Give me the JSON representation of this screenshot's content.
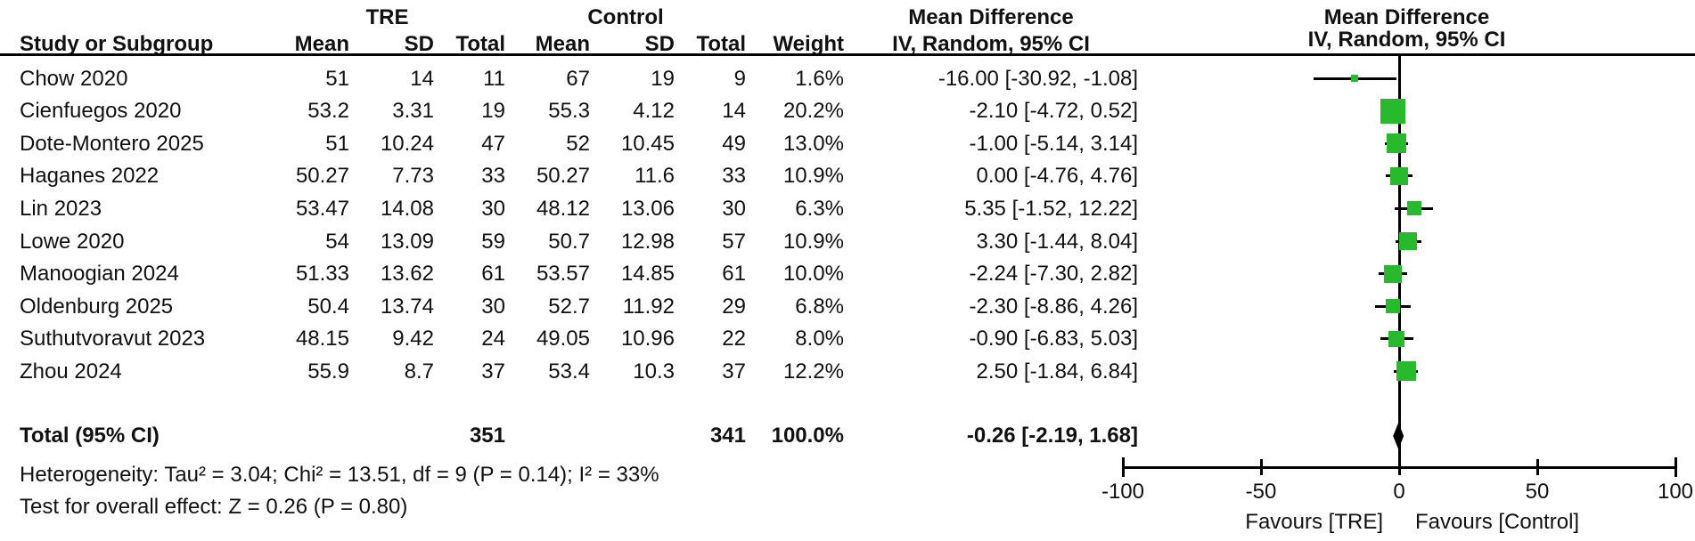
{
  "header": {
    "group1": "TRE",
    "group2": "Control",
    "md_label": "Mean Difference",
    "method_label": "IV, Random, 95% CI",
    "cols": [
      "Study or Subgroup",
      "Mean",
      "SD",
      "Total",
      "Mean",
      "SD",
      "Total",
      "Weight",
      "IV, Random, 95% CI"
    ]
  },
  "chart_data": {
    "type": "forest",
    "title": "",
    "effect_measure": "Mean Difference",
    "method": "IV, Random, 95% CI",
    "groups": [
      "TRE",
      "Control"
    ],
    "studies": [
      {
        "study": "Chow 2020",
        "tre_mean": "51",
        "tre_sd": "14",
        "tre_total": "11",
        "ctl_mean": "67",
        "ctl_sd": "19",
        "ctl_total": "9",
        "weight": "1.6%",
        "ci_text": "-16.00 [-30.92, -1.08]",
        "md": -16.0,
        "lo": -30.92,
        "hi": -1.08,
        "weight_pct": 1.6
      },
      {
        "study": "Cienfuegos 2020",
        "tre_mean": "53.2",
        "tre_sd": "3.31",
        "tre_total": "19",
        "ctl_mean": "55.3",
        "ctl_sd": "4.12",
        "ctl_total": "14",
        "weight": "20.2%",
        "ci_text": "-2.10 [-4.72, 0.52]",
        "md": -2.1,
        "lo": -4.72,
        "hi": 0.52,
        "weight_pct": 20.2
      },
      {
        "study": "Dote-Montero 2025",
        "tre_mean": "51",
        "tre_sd": "10.24",
        "tre_total": "47",
        "ctl_mean": "52",
        "ctl_sd": "10.45",
        "ctl_total": "49",
        "weight": "13.0%",
        "ci_text": "-1.00 [-5.14, 3.14]",
        "md": -1.0,
        "lo": -5.14,
        "hi": 3.14,
        "weight_pct": 13.0
      },
      {
        "study": "Haganes 2022",
        "tre_mean": "50.27",
        "tre_sd": "7.73",
        "tre_total": "33",
        "ctl_mean": "50.27",
        "ctl_sd": "11.6",
        "ctl_total": "33",
        "weight": "10.9%",
        "ci_text": "0.00 [-4.76, 4.76]",
        "md": 0.0,
        "lo": -4.76,
        "hi": 4.76,
        "weight_pct": 10.9
      },
      {
        "study": "Lin 2023",
        "tre_mean": "53.47",
        "tre_sd": "14.08",
        "tre_total": "30",
        "ctl_mean": "48.12",
        "ctl_sd": "13.06",
        "ctl_total": "30",
        "weight": "6.3%",
        "ci_text": "5.35 [-1.52, 12.22]",
        "md": 5.35,
        "lo": -1.52,
        "hi": 12.22,
        "weight_pct": 6.3
      },
      {
        "study": "Lowe 2020",
        "tre_mean": "54",
        "tre_sd": "13.09",
        "tre_total": "59",
        "ctl_mean": "50.7",
        "ctl_sd": "12.98",
        "ctl_total": "57",
        "weight": "10.9%",
        "ci_text": "3.30 [-1.44, 8.04]",
        "md": 3.3,
        "lo": -1.44,
        "hi": 8.04,
        "weight_pct": 10.9
      },
      {
        "study": "Manoogian 2024",
        "tre_mean": "51.33",
        "tre_sd": "13.62",
        "tre_total": "61",
        "ctl_mean": "53.57",
        "ctl_sd": "14.85",
        "ctl_total": "61",
        "weight": "10.0%",
        "ci_text": "-2.24 [-7.30, 2.82]",
        "md": -2.24,
        "lo": -7.3,
        "hi": 2.82,
        "weight_pct": 10.0
      },
      {
        "study": "Oldenburg 2025",
        "tre_mean": "50.4",
        "tre_sd": "13.74",
        "tre_total": "30",
        "ctl_mean": "52.7",
        "ctl_sd": "11.92",
        "ctl_total": "29",
        "weight": "6.8%",
        "ci_text": "-2.30 [-8.86, 4.26]",
        "md": -2.3,
        "lo": -8.86,
        "hi": 4.26,
        "weight_pct": 6.8
      },
      {
        "study": "Suthutvoravut 2023",
        "tre_mean": "48.15",
        "tre_sd": "9.42",
        "tre_total": "24",
        "ctl_mean": "49.05",
        "ctl_sd": "10.96",
        "ctl_total": "22",
        "weight": "8.0%",
        "ci_text": "-0.90 [-6.83, 5.03]",
        "md": -0.9,
        "lo": -6.83,
        "hi": 5.03,
        "weight_pct": 8.0
      },
      {
        "study": "Zhou 2024",
        "tre_mean": "55.9",
        "tre_sd": "8.7",
        "tre_total": "37",
        "ctl_mean": "53.4",
        "ctl_sd": "10.3",
        "ctl_total": "37",
        "weight": "12.2%",
        "ci_text": "2.50 [-1.84, 6.84]",
        "md": 2.5,
        "lo": -1.84,
        "hi": 6.84,
        "weight_pct": 12.2
      }
    ],
    "total": {
      "label": "Total (95% CI)",
      "tre_total": "351",
      "ctl_total": "341",
      "weight": "100.0%",
      "ci_text": "-0.26 [-2.19, 1.68]",
      "md": -0.26,
      "lo": -2.19,
      "hi": 1.68
    },
    "axis": {
      "min": -100,
      "max": 100,
      "ticks": [
        -100,
        -50,
        0,
        50,
        100
      ],
      "tick_labels": [
        "-100",
        "-50",
        "0",
        "50",
        "100"
      ],
      "favours_left": "Favours [TRE]",
      "favours_right": "Favours [Control]"
    },
    "footnotes": {
      "heterogeneity": "Heterogeneity: Tau² = 3.04; Chi² = 13.51, df = 9 (P = 0.14); I² = 33%",
      "overall_effect": "Test for overall effect: Z = 0.26 (P = 0.80)"
    },
    "colors": {
      "square": "#28b92d",
      "ci_line": "#000000",
      "diamond": "#000000",
      "axis": "#000000",
      "text": "#111111"
    }
  }
}
